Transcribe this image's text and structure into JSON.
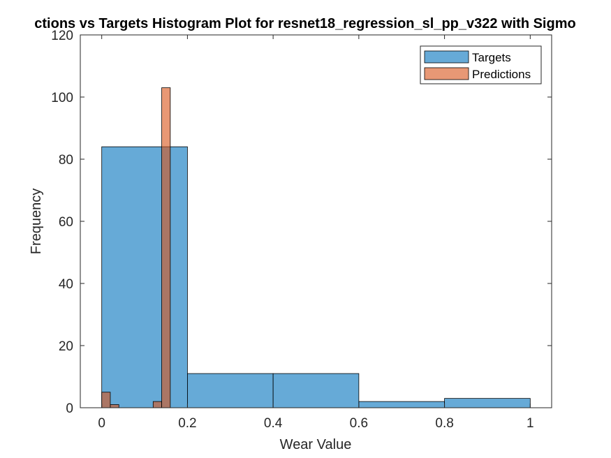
{
  "chart_data": {
    "type": "bar",
    "title": "ctions vs Targets Histogram Plot for resnet18_regression_sl_pp_v322 with Sigmo",
    "xlabel": "Wear Value",
    "ylabel": "Frequency",
    "xlim": [
      -0.05,
      1.05
    ],
    "ylim": [
      0,
      120
    ],
    "xticks": [
      "0",
      "0.2",
      "0.4",
      "0.6",
      "0.8",
      "1"
    ],
    "xtick_values": [
      0,
      0.2,
      0.4,
      0.6,
      0.8,
      1.0
    ],
    "yticks": [
      "0",
      "20",
      "40",
      "60",
      "80",
      "100",
      "120"
    ],
    "ytick_values": [
      0,
      20,
      40,
      60,
      80,
      100,
      120
    ],
    "grid": false,
    "legend_placement": "top-right",
    "series": [
      {
        "name": "Targets",
        "color": "#0072BD",
        "bins": [
          {
            "x0": 0.0,
            "x1": 0.2,
            "count": 84
          },
          {
            "x0": 0.2,
            "x1": 0.4,
            "count": 11
          },
          {
            "x0": 0.4,
            "x1": 0.6,
            "count": 11
          },
          {
            "x0": 0.6,
            "x1": 0.8,
            "count": 2
          },
          {
            "x0": 0.8,
            "x1": 1.0,
            "count": 3
          }
        ]
      },
      {
        "name": "Predictions",
        "color": "#D95319",
        "bins": [
          {
            "x0": 0.0,
            "x1": 0.02,
            "count": 5
          },
          {
            "x0": 0.02,
            "x1": 0.04,
            "count": 1
          },
          {
            "x0": 0.04,
            "x1": 0.06,
            "count": 0
          },
          {
            "x0": 0.06,
            "x1": 0.08,
            "count": 0
          },
          {
            "x0": 0.08,
            "x1": 0.1,
            "count": 0
          },
          {
            "x0": 0.1,
            "x1": 0.12,
            "count": 0
          },
          {
            "x0": 0.12,
            "x1": 0.14,
            "count": 2
          },
          {
            "x0": 0.14,
            "x1": 0.16,
            "count": 103
          }
        ]
      }
    ]
  }
}
